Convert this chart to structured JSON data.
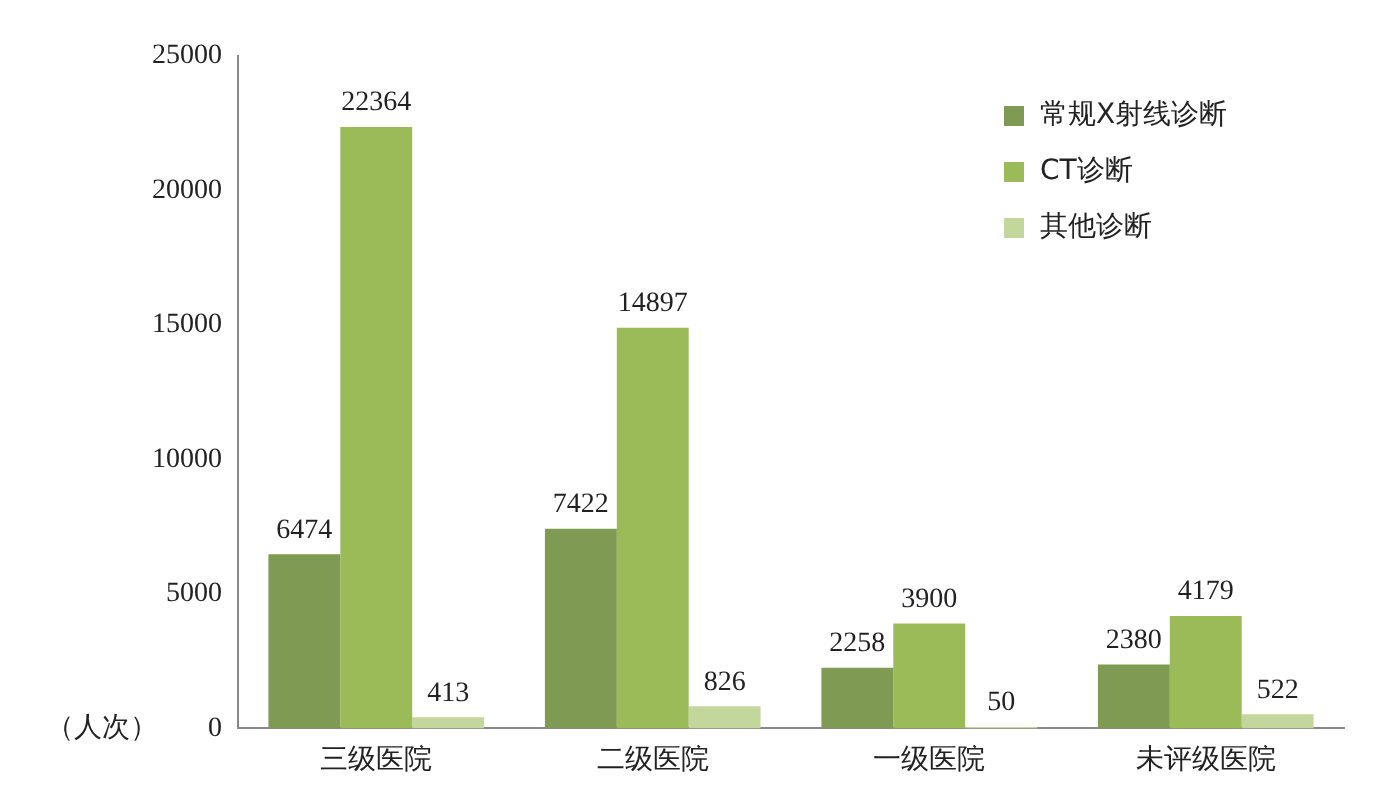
{
  "chart_data": {
    "type": "bar",
    "ylabel": "（人次）",
    "categories": [
      "三级医院",
      "二级医院",
      "一级医院",
      "未评级医院"
    ],
    "series": [
      {
        "name": "常规X射线诊断",
        "color": "#7f9a52",
        "values": [
          6474,
          7422,
          2258,
          2380
        ]
      },
      {
        "name": "CT诊断",
        "color": "#9bbb59",
        "values": [
          22364,
          14897,
          3900,
          4179
        ]
      },
      {
        "name": "其他诊断",
        "color": "#c3d69b",
        "values": [
          413,
          826,
          50,
          522
        ]
      }
    ],
    "ylim": [
      0,
      25000
    ],
    "yticks": [
      0,
      5000,
      10000,
      15000,
      20000,
      25000
    ],
    "grid": false,
    "legend": "top right",
    "data_labels": true
  }
}
